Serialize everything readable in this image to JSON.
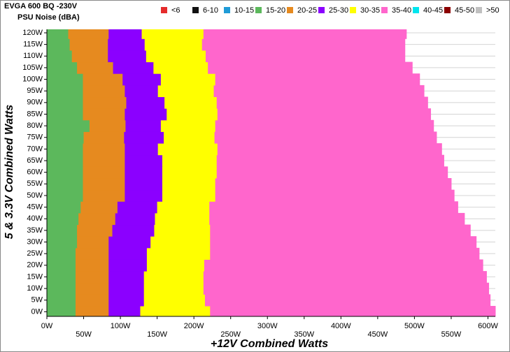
{
  "chart_data": {
    "type": "stacked-bar-horizontal",
    "title": "EVGA 600 BQ -230V",
    "subtitle": "PSU Noise (dBA)",
    "x_label": "+12V Combined Watts",
    "y_label": "5 & 3.3V Combined Watts",
    "y": [
      0,
      5,
      10,
      15,
      20,
      25,
      30,
      35,
      40,
      45,
      50,
      55,
      60,
      65,
      70,
      75,
      80,
      85,
      90,
      95,
      100,
      105,
      110,
      115,
      120
    ],
    "series": [
      {
        "name": "<6",
        "color": "#e52b2b",
        "values": [
          null,
          null,
          null,
          null,
          null,
          null,
          null,
          null,
          null,
          null,
          null,
          null,
          null,
          null,
          null,
          null,
          null,
          null,
          null,
          null,
          null,
          null,
          null,
          null,
          null
        ]
      },
      {
        "name": "6-10",
        "color": "#111111",
        "values": [
          null,
          null,
          null,
          null,
          null,
          null,
          null,
          null,
          null,
          null,
          null,
          null,
          null,
          null,
          null,
          null,
          null,
          null,
          null,
          null,
          null,
          null,
          null,
          null,
          null
        ]
      },
      {
        "name": "10-15",
        "color": "#1f9bd7",
        "values": [
          null,
          null,
          null,
          null,
          null,
          null,
          null,
          null,
          null,
          null,
          null,
          null,
          null,
          null,
          null,
          null,
          null,
          null,
          null,
          null,
          null,
          null,
          null,
          null,
          null
        ]
      },
      {
        "name": "15-20",
        "color": "#5cb85c",
        "values": [
          39,
          39,
          39,
          39,
          39,
          39,
          41,
          41,
          43,
          46,
          49,
          49,
          49,
          49,
          49,
          50,
          58,
          49,
          49,
          49,
          49,
          41,
          34,
          31,
          29
        ]
      },
      {
        "name": "20-25",
        "color": "#e68a1f",
        "values": [
          45,
          45,
          45,
          45,
          45,
          45,
          43,
          48,
          50,
          50,
          57,
          57,
          57,
          57,
          57,
          55,
          49,
          57,
          59,
          57,
          54,
          49,
          49,
          52,
          55
        ]
      },
      {
        "name": "25-30",
        "color": "#8b00ff",
        "values": [
          43,
          48,
          48,
          48,
          52,
          52,
          57,
          57,
          54,
          54,
          51,
          51,
          51,
          51,
          45,
          54,
          48,
          57,
          52,
          45,
          52,
          55,
          52,
          50,
          45
        ]
      },
      {
        "name": "30-35",
        "color": "#ffff00",
        "values": [
          95,
          83,
          81,
          81,
          78,
          86,
          81,
          76,
          74,
          71,
          72,
          72,
          74,
          74,
          81,
          69,
          74,
          69,
          71,
          76,
          74,
          74,
          81,
          78,
          84
        ]
      },
      {
        "name": "35-40",
        "color": "#ff66cc",
        "values": [
          388,
          388,
          388,
          385,
          379,
          366,
          362,
          354,
          347,
          338,
          325,
          321,
          314,
          309,
          305,
          302,
          297,
          290,
          287,
          286,
          278,
          278,
          271,
          276,
          276
        ]
      },
      {
        "name": "40-45",
        "color": "#00e5ee",
        "values": [
          null,
          null,
          null,
          null,
          null,
          null,
          null,
          null,
          null,
          null,
          null,
          null,
          null,
          null,
          null,
          null,
          null,
          null,
          null,
          null,
          null,
          null,
          null,
          null,
          null
        ]
      },
      {
        "name": "45-50",
        "color": "#8b0000",
        "values": [
          null,
          null,
          null,
          null,
          null,
          null,
          null,
          null,
          null,
          null,
          null,
          null,
          null,
          null,
          null,
          null,
          null,
          null,
          null,
          null,
          null,
          null,
          null,
          null,
          null
        ]
      },
      {
        "name": ">50",
        "color": "#c0c0c0",
        "values": [
          null,
          null,
          null,
          null,
          null,
          null,
          null,
          null,
          null,
          null,
          null,
          null,
          null,
          null,
          null,
          null,
          null,
          null,
          null,
          null,
          null,
          null,
          null,
          null,
          null
        ]
      }
    ],
    "row_height": 5,
    "xlim": [
      0,
      610
    ],
    "ylim": [
      -2,
      121.5
    ],
    "xticks": [
      {
        "value": 0,
        "label": "0W"
      },
      {
        "value": 50,
        "label": "50W"
      },
      {
        "value": 100,
        "label": "100W"
      },
      {
        "value": 150,
        "label": "150W"
      },
      {
        "value": 200,
        "label": "200W"
      },
      {
        "value": 250,
        "label": "250W"
      },
      {
        "value": 300,
        "label": "300W"
      },
      {
        "value": 350,
        "label": "350W"
      },
      {
        "value": 400,
        "label": "400W"
      },
      {
        "value": 450,
        "label": "450W"
      },
      {
        "value": 500,
        "label": "500W"
      },
      {
        "value": 550,
        "label": "550W"
      },
      {
        "value": 600,
        "label": "600W"
      }
    ],
    "yticks": [
      {
        "value": 0,
        "label": "0W"
      },
      {
        "value": 5,
        "label": "5W"
      },
      {
        "value": 10,
        "label": "10W"
      },
      {
        "value": 15,
        "label": "15W"
      },
      {
        "value": 20,
        "label": "20W"
      },
      {
        "value": 25,
        "label": "25W"
      },
      {
        "value": 30,
        "label": "30W"
      },
      {
        "value": 35,
        "label": "35W"
      },
      {
        "value": 40,
        "label": "40W"
      },
      {
        "value": 45,
        "label": "45W"
      },
      {
        "value": 50,
        "label": "50W"
      },
      {
        "value": 55,
        "label": "55W"
      },
      {
        "value": 60,
        "label": "60W"
      },
      {
        "value": 65,
        "label": "65W"
      },
      {
        "value": 70,
        "label": "70W"
      },
      {
        "value": 75,
        "label": "75W"
      },
      {
        "value": 80,
        "label": "80W"
      },
      {
        "value": 85,
        "label": "85W"
      },
      {
        "value": 90,
        "label": "90W"
      },
      {
        "value": 95,
        "label": "95W"
      },
      {
        "value": 100,
        "label": "100W"
      },
      {
        "value": 105,
        "label": "105W"
      },
      {
        "value": 110,
        "label": "110W"
      },
      {
        "value": 115,
        "label": "115W"
      },
      {
        "value": 120,
        "label": "120W"
      }
    ],
    "grid": true
  }
}
